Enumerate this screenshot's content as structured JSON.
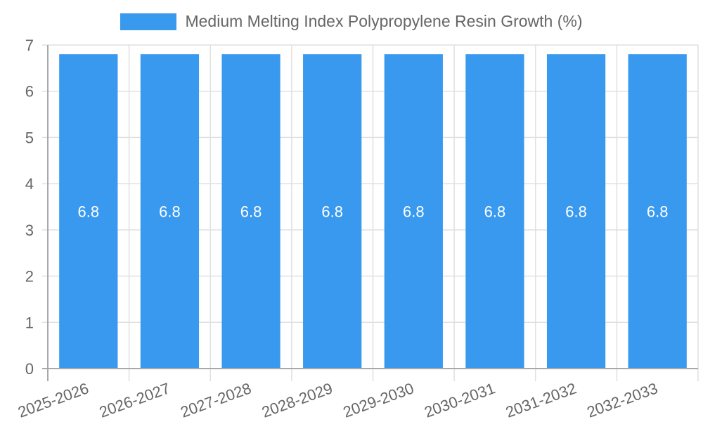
{
  "chart_data": {
    "type": "bar",
    "title": "",
    "legend": [
      {
        "label": "Medium Melting Index Polypropylene Resin Growth (%)",
        "color": "#3899ee"
      }
    ],
    "legend_position": "top",
    "categories": [
      "2025-2026",
      "2026-2027",
      "2027-2028",
      "2028-2029",
      "2029-2030",
      "2030-2031",
      "2031-2032",
      "2032-2033"
    ],
    "series": [
      {
        "name": "Medium Melting Index Polypropylene Resin Growth (%)",
        "values": [
          6.8,
          6.8,
          6.8,
          6.8,
          6.8,
          6.8,
          6.8,
          6.8
        ],
        "color": "#3899ee"
      }
    ],
    "data_labels": [
      "6.8",
      "6.8",
      "6.8",
      "6.8",
      "6.8",
      "6.8",
      "6.8",
      "6.8"
    ],
    "xlabel": "",
    "ylabel": "",
    "ylim": [
      0,
      7
    ],
    "yticks": [
      0,
      1,
      2,
      3,
      4,
      5,
      6,
      7
    ],
    "grid": true,
    "x_tick_rotation": -20
  },
  "colors": {
    "bar": "#3899ee",
    "grid": "#e0e0e0",
    "axis": "#a8a8a8",
    "tick_text": "#666666",
    "data_label": "#ffffff"
  }
}
